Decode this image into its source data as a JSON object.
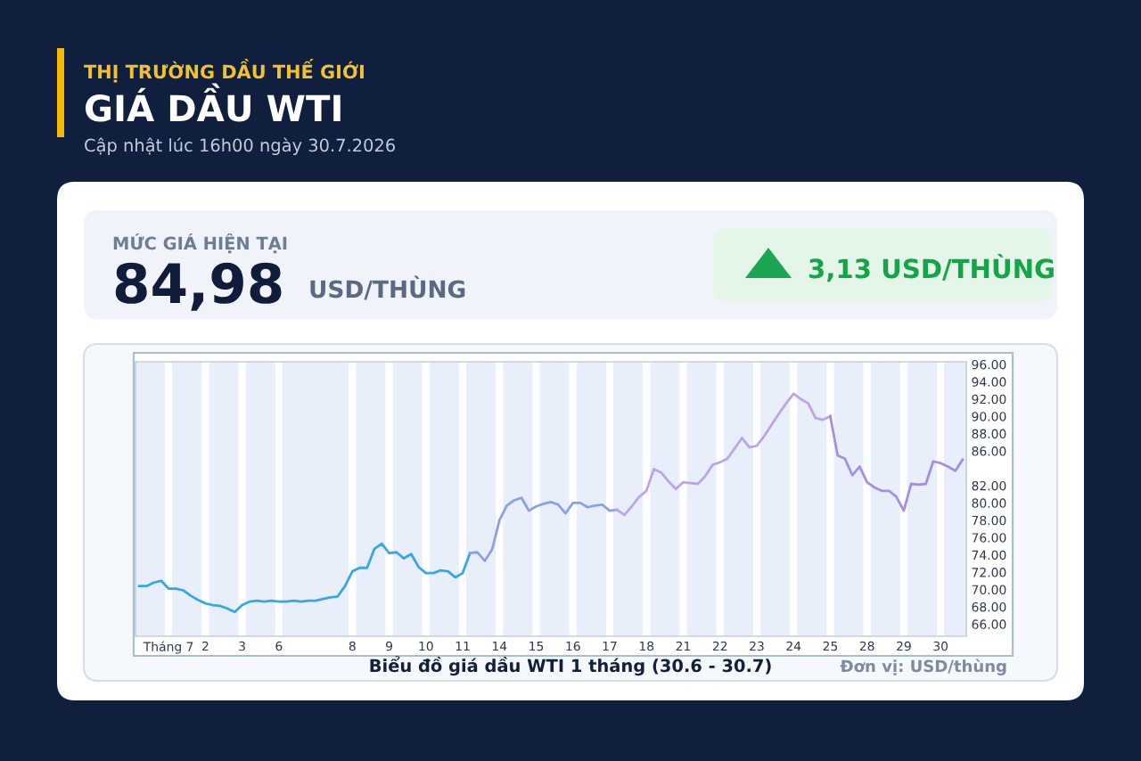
{
  "chart_data": {
    "type": "line",
    "title": "GIÁ DẦU WTI",
    "subtitle": "Cập nhật lúc 16h00 ngày 30.7.2026",
    "annotations": [
      "THỊ TRƯỜNG DẦU THẾ GIỚI",
      "MỨC GIÁ HIỆN TẠI",
      "84,98",
      "USD/THÙNG",
      "3,13 USD/THÙNG",
      "Biểu đồ giá dầu WTI 1 tháng (30.6 - 30.7)",
      "Đơn vị: USD/thùng"
    ],
    "categories": [
      null,
      null,
      null,
      null,
      "Tháng 7",
      null,
      null,
      null,
      null,
      "2",
      null,
      null,
      null,
      null,
      "3",
      null,
      null,
      null,
      null,
      "6",
      null,
      null,
      null,
      null,
      null,
      null,
      null,
      null,
      null,
      "8",
      null,
      null,
      null,
      null,
      "9",
      null,
      null,
      null,
      null,
      "10",
      null,
      null,
      null,
      null,
      "11",
      null,
      null,
      null,
      null,
      "14",
      null,
      null,
      null,
      null,
      "15",
      null,
      null,
      null,
      null,
      "16",
      null,
      null,
      null,
      null,
      "17",
      null,
      null,
      null,
      null,
      "18",
      null,
      null,
      null,
      null,
      "21",
      null,
      null,
      null,
      null,
      "22",
      null,
      null,
      null,
      null,
      "23",
      null,
      null,
      null,
      null,
      "24",
      null,
      null,
      null,
      null,
      "25",
      null,
      null,
      null,
      null,
      "28",
      null,
      null,
      null,
      null,
      "29",
      null,
      null,
      null,
      null,
      "30",
      null,
      null,
      null
    ],
    "series": [
      {
        "color": "#37a6e6",
        "values": [
          70.4,
          70.4,
          70.8,
          71.0,
          70.1,
          70.1,
          69.9,
          69.3,
          68.8,
          68.4,
          68.2,
          68.1,
          67.8,
          67.4,
          68.2,
          68.6,
          68.7,
          68.6,
          68.7,
          68.6,
          68.6,
          68.7,
          68.6,
          68.7,
          68.7,
          68.9,
          69.1,
          69.2,
          70.4,
          72.1,
          72.5,
          72.5,
          74.7,
          75.3,
          74.2,
          74.3,
          73.6,
          74.1,
          72.6,
          71.9,
          71.9,
          72.2,
          72.1,
          71.4,
          71.9,
          74.2,
          null,
          null,
          null,
          null,
          null,
          null,
          null,
          null,
          null,
          null,
          null,
          null,
          null,
          null,
          null,
          null,
          null,
          null,
          null,
          null,
          null,
          null,
          null,
          null,
          null,
          null,
          null,
          null,
          null,
          null,
          null,
          null,
          null,
          null,
          null,
          null,
          null,
          null,
          null,
          null,
          null,
          null,
          null,
          null,
          null,
          null,
          null,
          null,
          null,
          null,
          null,
          null,
          null,
          null,
          null,
          null,
          null,
          null,
          null,
          null,
          null,
          null,
          null,
          null,
          null,
          null,
          null
        ]
      },
      {
        "color": "#8b9ef0",
        "values": [
          null,
          null,
          null,
          null,
          null,
          null,
          null,
          null,
          null,
          null,
          null,
          null,
          null,
          null,
          null,
          null,
          null,
          null,
          null,
          null,
          null,
          null,
          null,
          null,
          null,
          null,
          null,
          null,
          null,
          null,
          null,
          null,
          null,
          null,
          null,
          null,
          null,
          null,
          null,
          null,
          null,
          null,
          null,
          null,
          null,
          74.2,
          74.3,
          73.3,
          74.6,
          78.0,
          79.7,
          80.3,
          80.6,
          79.1,
          79.6,
          79.9,
          80.1,
          79.8,
          78.8,
          80.0,
          80.0,
          79.5,
          79.7,
          79.8,
          79.1,
          79.2,
          null,
          null,
          null,
          null,
          null,
          null,
          null,
          null,
          null,
          null,
          null,
          null,
          null,
          null,
          null,
          null,
          null,
          null,
          null,
          null,
          null,
          null,
          null,
          null,
          null,
          null,
          null,
          null,
          null,
          null,
          null,
          null,
          null,
          null,
          null,
          null,
          null,
          null,
          null,
          null,
          null,
          null,
          null,
          null,
          null,
          null,
          null
        ]
      },
      {
        "color": "#bda3ea",
        "values": [
          null,
          null,
          null,
          null,
          null,
          null,
          null,
          null,
          null,
          null,
          null,
          null,
          null,
          null,
          null,
          null,
          null,
          null,
          null,
          null,
          null,
          null,
          null,
          null,
          null,
          null,
          null,
          null,
          null,
          null,
          null,
          null,
          null,
          null,
          null,
          null,
          null,
          null,
          null,
          null,
          null,
          null,
          null,
          null,
          null,
          null,
          null,
          null,
          null,
          null,
          null,
          null,
          null,
          null,
          null,
          null,
          null,
          null,
          null,
          null,
          null,
          null,
          null,
          null,
          null,
          79.2,
          78.6,
          79.6,
          80.7,
          81.4,
          83.9,
          83.5,
          82.5,
          81.6,
          82.4,
          82.3,
          82.2,
          83.1,
          84.4,
          84.7,
          85.1,
          86.3,
          87.5,
          86.4,
          86.6,
          87.7,
          89.0,
          90.3,
          91.5,
          92.6,
          92.0,
          91.5,
          89.8,
          89.6,
          90.0,
          null,
          null,
          null,
          null,
          null,
          null,
          null,
          null,
          null,
          null,
          null,
          null,
          null,
          null,
          null,
          null,
          null,
          null
        ]
      },
      {
        "color": "#a58de8",
        "values": [
          null,
          null,
          null,
          null,
          null,
          null,
          null,
          null,
          null,
          null,
          null,
          null,
          null,
          null,
          null,
          null,
          null,
          null,
          null,
          null,
          null,
          null,
          null,
          null,
          null,
          null,
          null,
          null,
          null,
          null,
          null,
          null,
          null,
          null,
          null,
          null,
          null,
          null,
          null,
          null,
          null,
          null,
          null,
          null,
          null,
          null,
          null,
          null,
          null,
          null,
          null,
          null,
          null,
          null,
          null,
          null,
          null,
          null,
          null,
          null,
          null,
          null,
          null,
          null,
          null,
          null,
          null,
          null,
          null,
          null,
          null,
          null,
          null,
          null,
          null,
          null,
          null,
          null,
          null,
          null,
          null,
          null,
          null,
          null,
          null,
          null,
          null,
          null,
          null,
          null,
          null,
          null,
          null,
          null,
          90.0,
          85.5,
          85.1,
          83.2,
          84.2,
          82.4,
          81.8,
          81.4,
          81.4,
          80.7,
          79.1,
          82.2,
          82.1,
          82.2,
          84.8,
          84.6,
          84.2,
          83.7,
          85.0
        ]
      }
    ],
    "ylim": [
      64.6,
      96.3
    ],
    "yticks": [
      {
        "value": 66,
        "label": "66.00"
      },
      {
        "value": 68,
        "label": "68.00"
      },
      {
        "value": 70,
        "label": "70.00"
      },
      {
        "value": 72,
        "label": "72.00"
      },
      {
        "value": 74,
        "label": "74.00"
      },
      {
        "value": 76,
        "label": "76.00"
      },
      {
        "value": 78,
        "label": "78.00"
      },
      {
        "value": 80,
        "label": "80.00"
      },
      {
        "value": 82,
        "label": "82.00"
      },
      {
        "value": 86,
        "label": "86.00"
      },
      {
        "value": 88,
        "label": "88.00"
      },
      {
        "value": 90,
        "label": "90.00"
      },
      {
        "value": 92,
        "label": "92.00"
      },
      {
        "value": 94,
        "label": "94.00"
      },
      {
        "value": 96,
        "label": "96.00"
      }
    ],
    "bands": [
      {
        "axis": "x",
        "from": "Tháng 7",
        "to": "Tháng 7",
        "color": "#ffffff"
      },
      {
        "axis": "x",
        "from": "2",
        "to": "2",
        "color": "#ffffff"
      },
      {
        "axis": "x",
        "from": "3",
        "to": "3",
        "color": "#ffffff"
      },
      {
        "axis": "x",
        "from": "6",
        "to": "6",
        "color": "#ffffff"
      },
      {
        "axis": "x",
        "from": "8",
        "to": "8",
        "color": "#ffffff"
      },
      {
        "axis": "x",
        "from": "9",
        "to": "9",
        "color": "#ffffff"
      },
      {
        "axis": "x",
        "from": "10",
        "to": "10",
        "color": "#ffffff"
      },
      {
        "axis": "x",
        "from": "11",
        "to": "11",
        "color": "#ffffff"
      },
      {
        "axis": "x",
        "from": "14",
        "to": "14",
        "color": "#ffffff"
      },
      {
        "axis": "x",
        "from": "15",
        "to": "15",
        "color": "#ffffff"
      },
      {
        "axis": "x",
        "from": "16",
        "to": "16",
        "color": "#ffffff"
      },
      {
        "axis": "x",
        "from": "17",
        "to": "17",
        "color": "#ffffff"
      },
      {
        "axis": "x",
        "from": "18",
        "to": "18",
        "color": "#ffffff"
      },
      {
        "axis": "x",
        "from": "21",
        "to": "21",
        "color": "#ffffff"
      },
      {
        "axis": "x",
        "from": "22",
        "to": "22",
        "color": "#ffffff"
      },
      {
        "axis": "x",
        "from": "23",
        "to": "23",
        "color": "#ffffff"
      },
      {
        "axis": "x",
        "from": "24",
        "to": "24",
        "color": "#ffffff"
      },
      {
        "axis": "x",
        "from": "25",
        "to": "25",
        "color": "#ffffff"
      },
      {
        "axis": "x",
        "from": "28",
        "to": "28",
        "color": "#ffffff"
      },
      {
        "axis": "x",
        "from": "29",
        "to": "29",
        "color": "#ffffff"
      },
      {
        "axis": "x",
        "from": "30",
        "to": "30",
        "color": "#ffffff"
      }
    ]
  }
}
